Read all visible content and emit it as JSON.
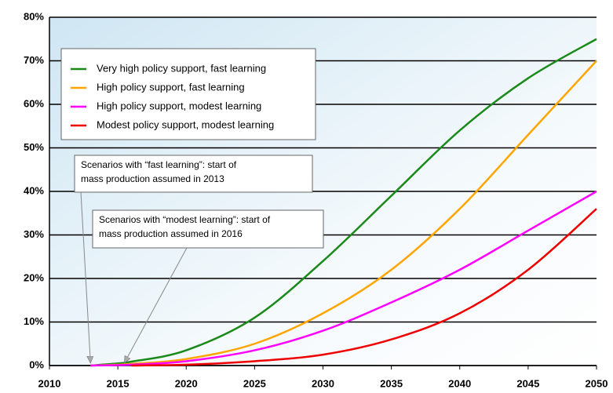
{
  "chart_data": {
    "type": "line",
    "x": [
      2013,
      2015,
      2016,
      2020,
      2025,
      2030,
      2035,
      2040,
      2045,
      2050
    ],
    "series": [
      {
        "name": "Very high policy support, fast learning",
        "color": "#1a8a1a",
        "values": [
          0,
          0.5,
          0.9,
          3.5,
          11,
          24,
          39,
          54,
          66,
          75
        ]
      },
      {
        "name": "High policy support, fast learning",
        "color": "#ffa500",
        "values": [
          0,
          0.2,
          0.4,
          1.5,
          5,
          12,
          22,
          36,
          53,
          70
        ]
      },
      {
        "name": "High policy support, modest learning",
        "color": "#ff00ff",
        "values": [
          0,
          0.1,
          0.2,
          1,
          3.5,
          8,
          14.5,
          22,
          31,
          40
        ]
      },
      {
        "name": "Modest policy support, modest learning",
        "color": "#ee0000",
        "values": [
          null,
          null,
          0,
          0.2,
          1,
          2.5,
          6,
          12,
          22,
          36
        ]
      }
    ],
    "xlim": [
      2010,
      2050
    ],
    "xticks": [
      2010,
      2015,
      2020,
      2025,
      2030,
      2035,
      2040,
      2045,
      2050
    ],
    "ylim": [
      0,
      80
    ],
    "yticks": [
      {
        "value": 0,
        "label": "0%"
      },
      {
        "value": 10,
        "label": "10%"
      },
      {
        "value": 20,
        "label": "20%"
      },
      {
        "value": 30,
        "label": "30%"
      },
      {
        "value": 40,
        "label": "40%"
      },
      {
        "value": 50,
        "label": "50%"
      },
      {
        "value": 60,
        "label": "60%"
      },
      {
        "value": 70,
        "label": "70%"
      },
      {
        "value": 80,
        "label": "80%"
      }
    ],
    "grid": true,
    "legend": "upper left",
    "annotations": [
      {
        "text": [
          "Scenarios with “fast learning”: start of",
          "mass production assumed in 2013"
        ],
        "x": 2013
      },
      {
        "text": [
          "Scenarios with “modest learning”: start of",
          "mass production assumed in 2016"
        ],
        "x": 2015.5
      }
    ]
  }
}
